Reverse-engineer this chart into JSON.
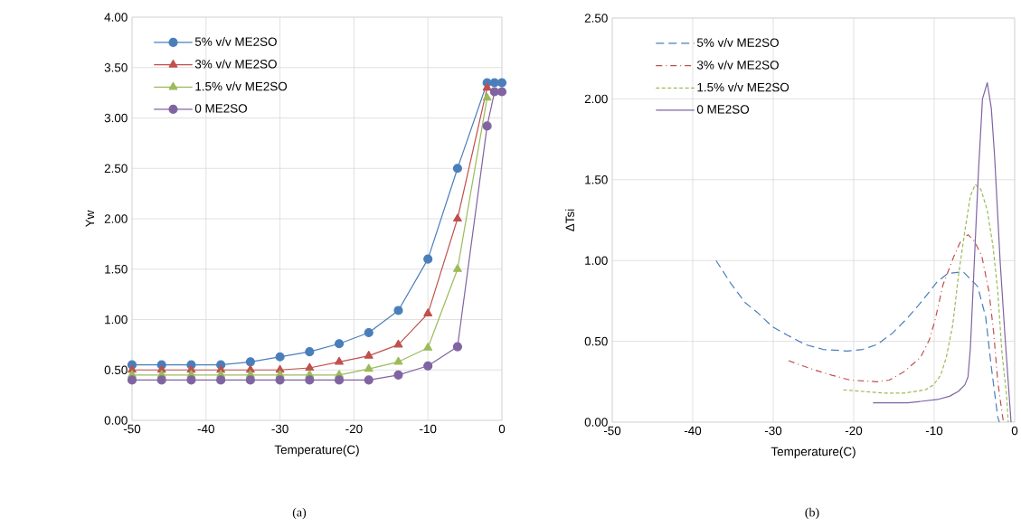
{
  "chart_data": [
    {
      "type": "line",
      "xlabel": "Temperature(C)",
      "ylabel": "Yw",
      "annotations": [
        "(a)"
      ],
      "x": [
        -50,
        -46,
        -42,
        -38,
        -34,
        -30,
        -26,
        -22,
        -18,
        -14,
        -10,
        -6,
        -2,
        -1,
        0
      ],
      "xlim": [
        -50,
        0
      ],
      "xticks": [
        -50,
        -40,
        -30,
        -20,
        -10,
        0
      ],
      "ylim": [
        0,
        4
      ],
      "yticks": [
        {
          "value": 0,
          "label": "0.00"
        },
        {
          "value": 0.5,
          "label": "0.50"
        },
        {
          "value": 1,
          "label": "1.00"
        },
        {
          "value": 1.5,
          "label": "1.50"
        },
        {
          "value": 2,
          "label": "2.00"
        },
        {
          "value": 2.5,
          "label": "2.50"
        },
        {
          "value": 3,
          "label": "3.00"
        },
        {
          "value": 3.5,
          "label": "3.50"
        },
        {
          "value": 4,
          "label": "4.00"
        }
      ],
      "grid": true,
      "legend": "top left",
      "line_style": "solid",
      "series": [
        {
          "name": "5% v/v ME2SO",
          "color": "#4a7ebb",
          "marker": "circle",
          "values": [
            0.55,
            0.55,
            0.55,
            0.55,
            0.58,
            0.63,
            0.68,
            0.76,
            0.87,
            1.09,
            1.6,
            2.5,
            3.35,
            3.35,
            3.35
          ]
        },
        {
          "name": "3% v/v ME2SO",
          "color": "#c0504d",
          "marker": "triangle",
          "values": [
            0.5,
            0.5,
            0.5,
            0.5,
            0.5,
            0.5,
            0.52,
            0.58,
            0.64,
            0.75,
            1.06,
            2.0,
            3.3,
            null,
            null
          ]
        },
        {
          "name": "1.5% v/v ME2SO",
          "color": "#9bbb59",
          "marker": "triangle",
          "values": [
            0.45,
            0.45,
            0.45,
            0.45,
            0.45,
            0.45,
            0.45,
            0.45,
            0.51,
            0.58,
            0.72,
            1.5,
            3.2,
            null,
            null
          ]
        },
        {
          "name": "0 ME2SO",
          "color": "#8064a2",
          "marker": "circle",
          "values": [
            0.4,
            0.4,
            0.4,
            0.4,
            0.4,
            0.4,
            0.4,
            0.4,
            0.4,
            0.45,
            0.54,
            0.73,
            2.92,
            3.26,
            3.26
          ]
        }
      ]
    },
    {
      "type": "line",
      "xlabel": "Temperature(C)",
      "ylabel": "ΔTsi",
      "annotations": [
        "(b)"
      ],
      "xlim": [
        -50,
        0
      ],
      "xticks": [
        -50,
        -40,
        -30,
        -20,
        -10,
        0
      ],
      "ylim": [
        0,
        2.5
      ],
      "yticks": [
        {
          "value": 0,
          "label": "0.00"
        },
        {
          "value": 0.5,
          "label": "0.50"
        },
        {
          "value": 1,
          "label": "1.00"
        },
        {
          "value": 1.5,
          "label": "1.50"
        },
        {
          "value": 2,
          "label": "2.00"
        },
        {
          "value": 2.5,
          "label": "2.50"
        }
      ],
      "grid": true,
      "legend": "top left",
      "marker": "none",
      "series": [
        {
          "name": "5% v/v ME2SO",
          "color": "#4a7ebb",
          "line_style": "dashed",
          "x": [
            -37.1,
            -35.3,
            -33.5,
            -32,
            -30.1,
            -28.3,
            -26,
            -23.8,
            -20.8,
            -18.9,
            -17.1,
            -15.2,
            -13.4,
            -11.5,
            -9.6,
            -8.3,
            -6.4,
            -4.6,
            -3.6,
            -2.9,
            -2.1,
            -1.9
          ],
          "values": [
            1.0,
            0.86,
            0.74,
            0.68,
            0.59,
            0.54,
            0.48,
            0.45,
            0.44,
            0.45,
            0.48,
            0.55,
            0.64,
            0.75,
            0.87,
            0.92,
            0.93,
            0.84,
            0.65,
            0.34,
            0.03,
            0
          ]
        },
        {
          "name": "3% v/v ME2SO",
          "color": "#c0504d",
          "line_style": "dashdot",
          "x": [
            -28.1,
            -25.3,
            -22.7,
            -20.4,
            -17.1,
            -15.6,
            -13.8,
            -11.7,
            -10.6,
            -9.9,
            -8.9,
            -7.6,
            -6.8,
            -5.8,
            -5.0,
            -4.1,
            -3.2,
            -2.6,
            -2.1,
            -1.6,
            -1.4
          ],
          "values": [
            0.38,
            0.33,
            0.29,
            0.26,
            0.25,
            0.26,
            0.31,
            0.4,
            0.51,
            0.63,
            0.85,
            1.02,
            1.11,
            1.16,
            1.12,
            1.03,
            0.81,
            0.55,
            0.25,
            0.07,
            0
          ]
        },
        {
          "name": "1.5% v/v ME2SO",
          "color": "#9bbb59",
          "line_style": "dotted",
          "x": [
            -21.3,
            -18.9,
            -16.3,
            -13.7,
            -11.1,
            -10.1,
            -9.2,
            -8.5,
            -7.7,
            -7.0,
            -6.2,
            -5.5,
            -4.9,
            -4.2,
            -3.4,
            -2.7,
            -2.1,
            -1.6,
            -1.0,
            -0.8
          ],
          "values": [
            0.2,
            0.19,
            0.18,
            0.18,
            0.2,
            0.23,
            0.29,
            0.4,
            0.6,
            0.9,
            1.18,
            1.4,
            1.47,
            1.44,
            1.31,
            1.09,
            0.81,
            0.44,
            0.16,
            0
          ]
        },
        {
          "name": "0 ME2SO",
          "color": "#8064a2",
          "line_style": "solid",
          "x": [
            -17.6,
            -15.9,
            -13.3,
            -11.4,
            -9.6,
            -8.1,
            -7.0,
            -6.2,
            -5.8,
            -5.5,
            -5.1,
            -4.5,
            -4.0,
            -3.4,
            -2.9,
            -2.5,
            -1.8,
            -1.2,
            -0.45
          ],
          "values": [
            0.12,
            0.12,
            0.12,
            0.13,
            0.14,
            0.16,
            0.19,
            0.23,
            0.28,
            0.46,
            0.9,
            1.55,
            2.0,
            2.1,
            1.94,
            1.65,
            0.99,
            0.53,
            0
          ]
        }
      ]
    }
  ]
}
